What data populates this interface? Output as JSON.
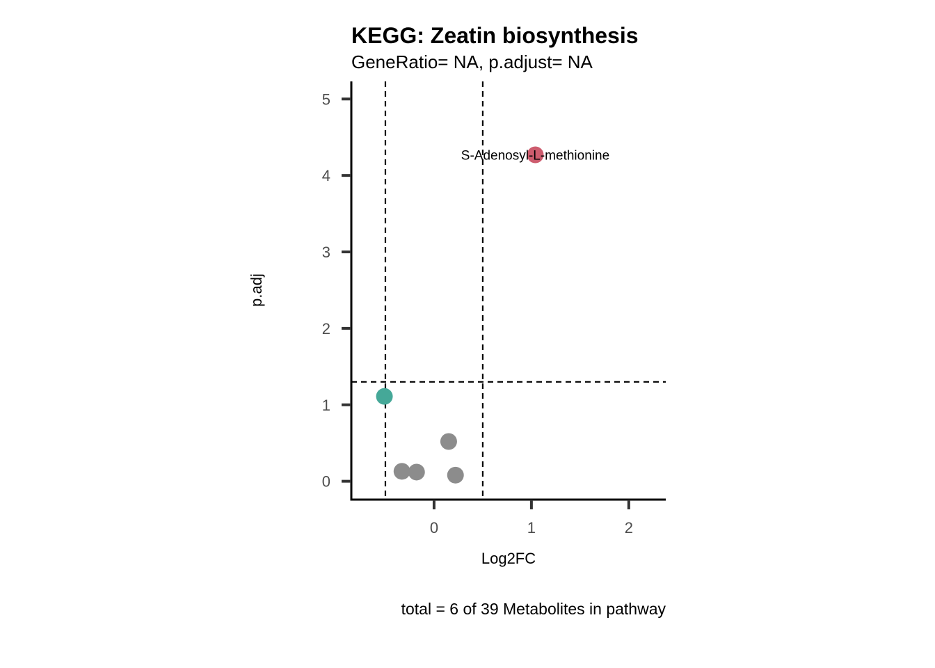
{
  "chart_data": {
    "type": "scatter",
    "title": "KEGG: Zeatin biosynthesis",
    "subtitle": "GeneRatio= NA, p.adjust= NA",
    "xlabel": "Log2FC",
    "ylabel": "p.adj",
    "caption": "total = 6 of 39 Metabolites in pathway",
    "xlim": [
      -0.85,
      2.38
    ],
    "ylim": [
      -0.24,
      5.23
    ],
    "x_ticks": [
      0,
      1,
      2
    ],
    "y_ticks": [
      0,
      1,
      2,
      3,
      4,
      5
    ],
    "vlines": [
      -0.5,
      0.5
    ],
    "hlines": [
      1.3
    ],
    "grid": false,
    "points": [
      {
        "x": 1.04,
        "y": 4.27,
        "color": "#cd5c6e",
        "label": "S-Adenosyl-L-methionine"
      },
      {
        "x": -0.51,
        "y": 1.11,
        "color": "#45a898",
        "label": ""
      },
      {
        "x": 0.15,
        "y": 0.52,
        "color": "#8c8c8c",
        "label": ""
      },
      {
        "x": -0.33,
        "y": 0.13,
        "color": "#8c8c8c",
        "label": ""
      },
      {
        "x": -0.18,
        "y": 0.12,
        "color": "#8c8c8c",
        "label": ""
      },
      {
        "x": 0.22,
        "y": 0.08,
        "color": "#8c8c8c",
        "label": ""
      }
    ]
  }
}
